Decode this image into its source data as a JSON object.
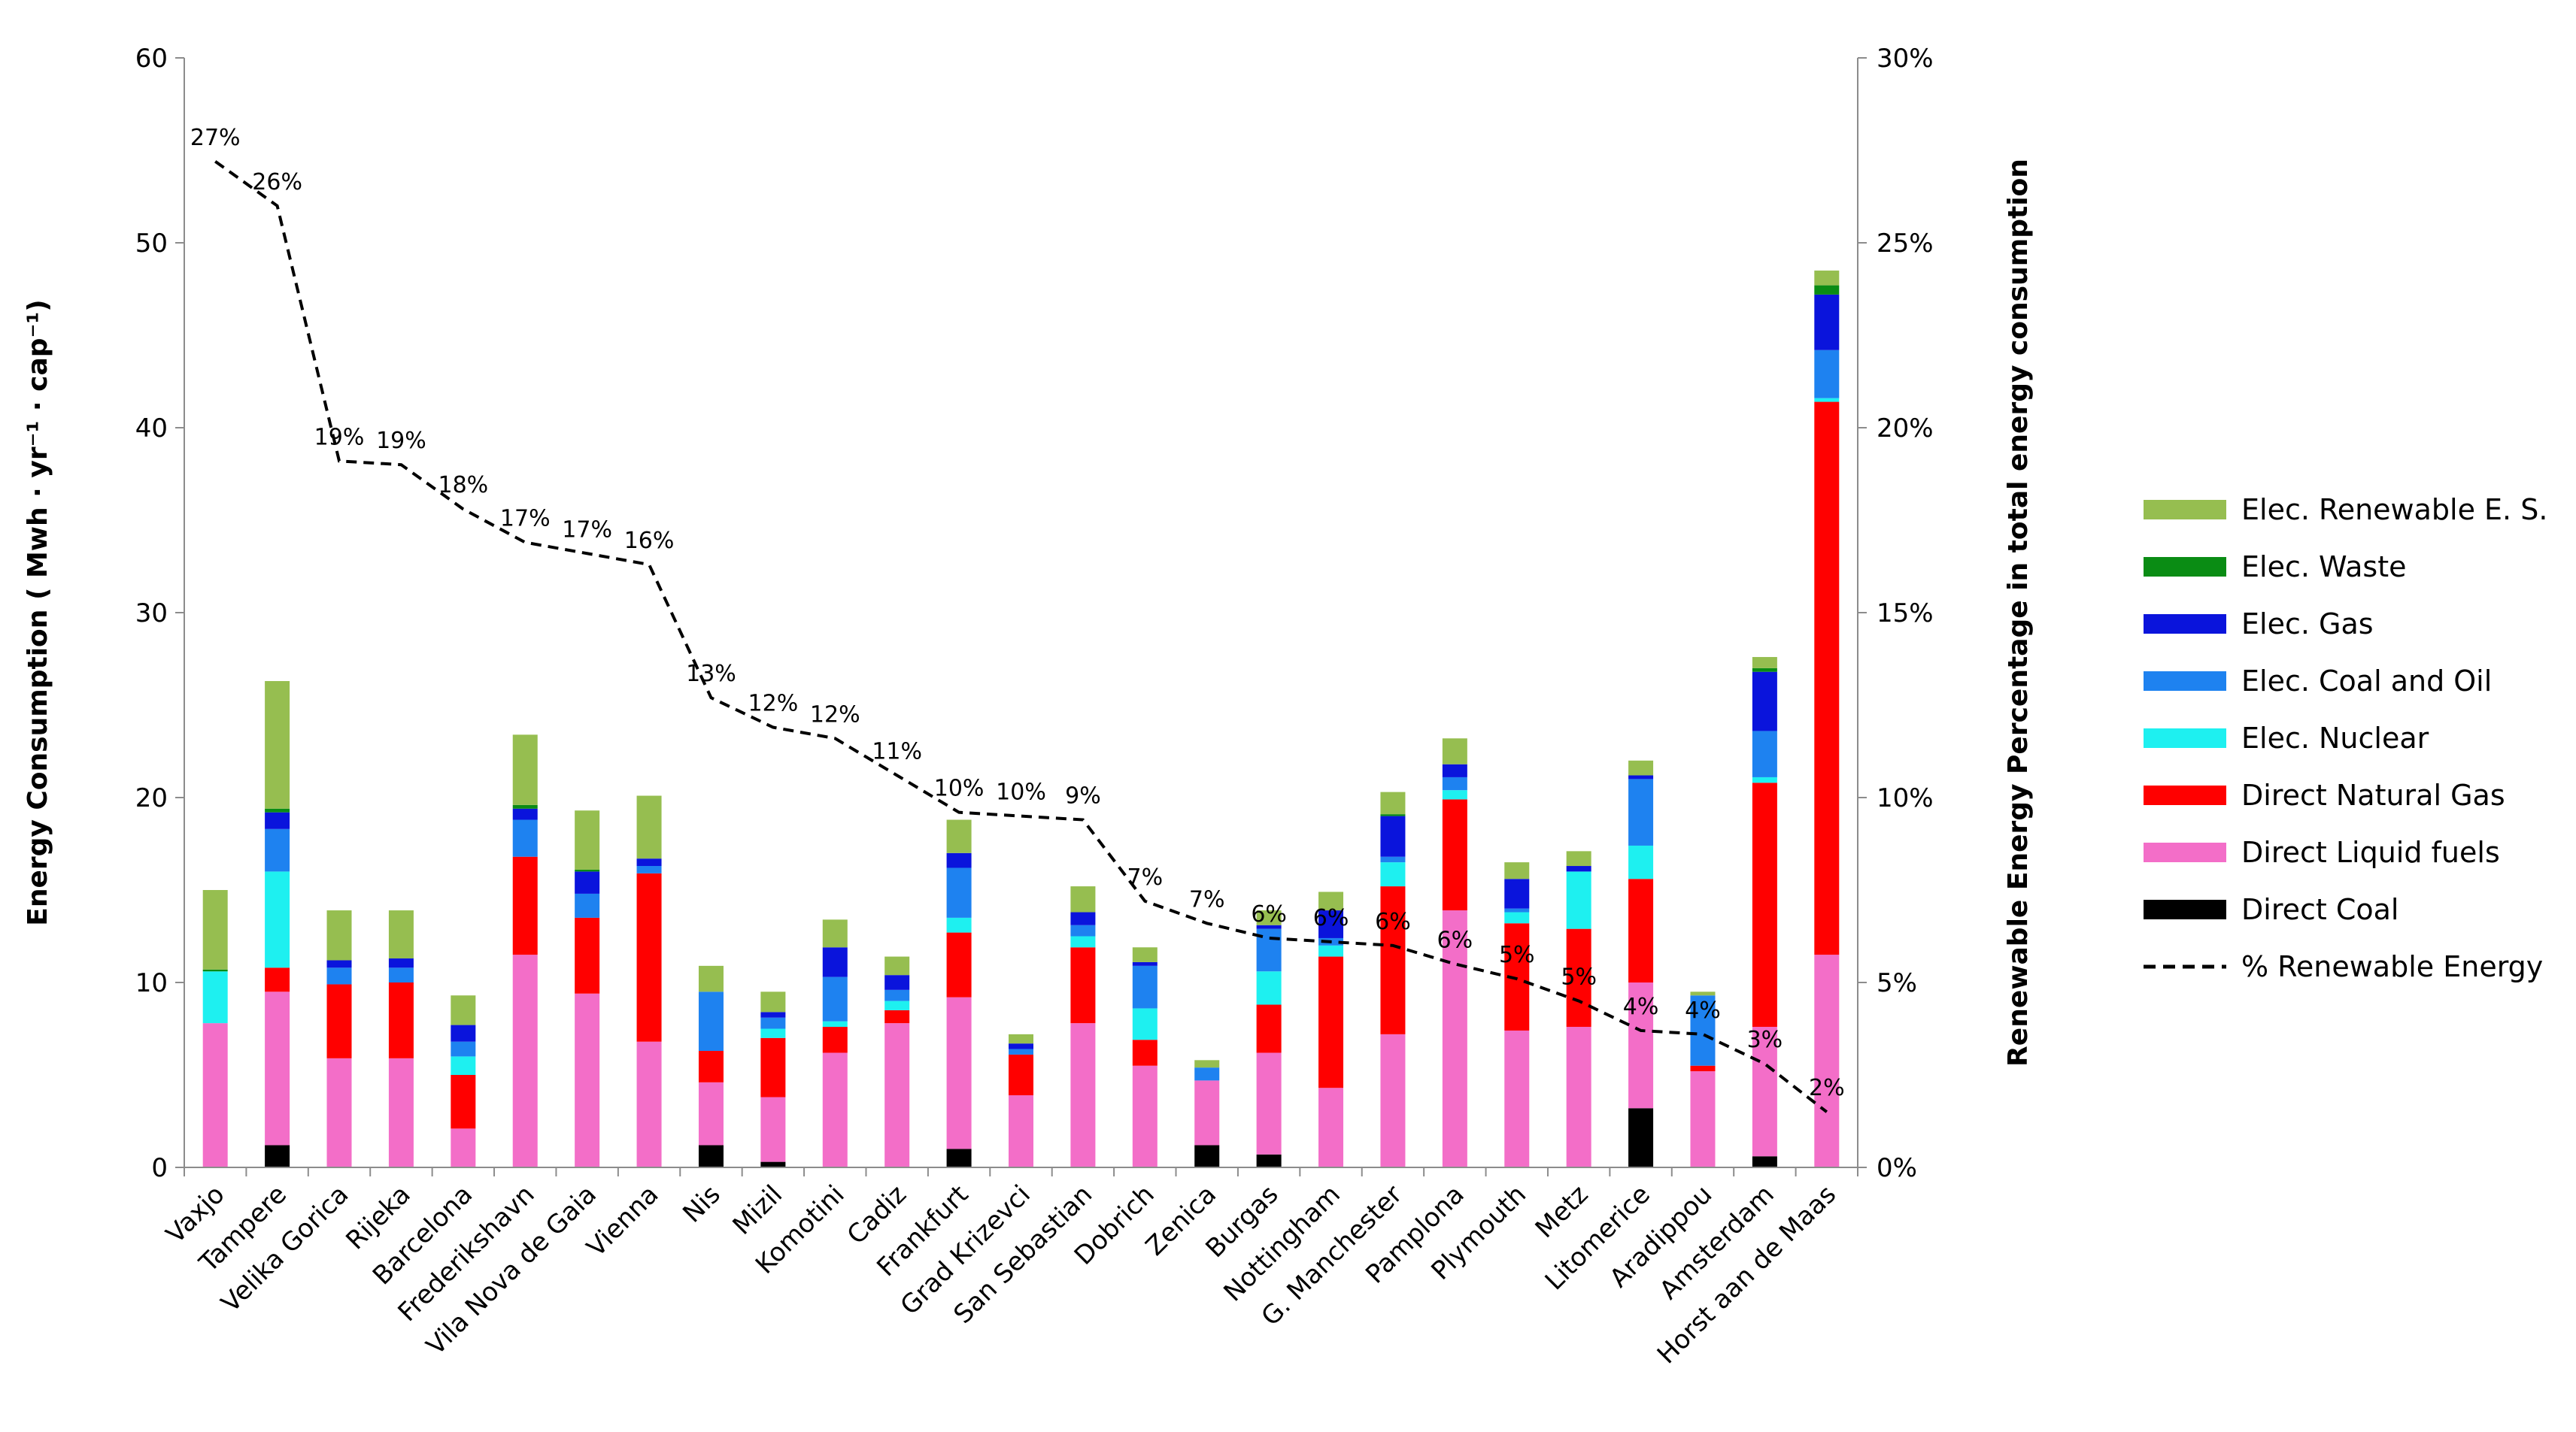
{
  "chart_data": {
    "type": "bar",
    "stacked": true,
    "categories": [
      "Vaxjo",
      "Tampere",
      "Velika Gorica",
      "Rijeka",
      "Barcelona",
      "Frederikshavn",
      "Vila Nova de Gaia",
      "Vienna",
      "Nis",
      "Mizil",
      "Komotini",
      "Cadiz",
      "Frankfurt",
      "Grad Krizevci",
      "San Sebastian",
      "Dobrich",
      "Zenica",
      "Burgas",
      "Nottingham",
      "G. Manchester",
      "Pamplona",
      "Plymouth",
      "Metz",
      "Litomerice",
      "Aradippou",
      "Amsterdam",
      "Horst aan de Maas"
    ],
    "ylabel": "Energy Consumption ( Mwh · yr⁻¹ · cap⁻¹)",
    "ylim": [
      0,
      60
    ],
    "yticks": [
      "0",
      "10",
      "20",
      "30",
      "40",
      "50",
      "60"
    ],
    "y2label": "Renewable Energy Percentage in total energy consumption",
    "y2lim": [
      0,
      30
    ],
    "y2ticks": [
      "0%",
      "5%",
      "10%",
      "15%",
      "20%",
      "25%",
      "30%"
    ],
    "series": [
      {
        "name": "Direct Coal",
        "color": "#000000",
        "values": [
          0,
          1.2,
          0,
          0,
          0,
          0,
          0,
          0,
          1.2,
          0.3,
          0,
          0,
          1.0,
          0,
          0,
          0,
          1.2,
          0.7,
          0,
          0,
          0,
          0,
          0,
          3.2,
          0,
          0.6,
          0
        ]
      },
      {
        "name": "Direct Liquid fuels",
        "color": "#f36ec8",
        "values": [
          7.8,
          8.3,
          5.9,
          5.9,
          2.1,
          11.5,
          9.4,
          6.8,
          3.4,
          3.5,
          6.2,
          7.8,
          8.2,
          3.9,
          7.8,
          5.5,
          3.5,
          5.5,
          4.3,
          7.2,
          13.9,
          7.4,
          7.6,
          6.8,
          5.2,
          7.0,
          11.5
        ]
      },
      {
        "name": "Direct Natural Gas",
        "color": "#ff0000",
        "values": [
          0,
          1.3,
          4.0,
          4.1,
          2.9,
          5.3,
          4.1,
          9.1,
          1.7,
          3.2,
          1.4,
          0.7,
          3.5,
          2.2,
          4.1,
          1.4,
          0,
          2.6,
          7.1,
          8.0,
          6.0,
          5.8,
          5.3,
          5.6,
          0.3,
          13.2,
          29.9
        ]
      },
      {
        "name": "Elec. Nuclear",
        "color": "#1ef0f0",
        "values": [
          2.8,
          5.2,
          0,
          0,
          1.0,
          0,
          0,
          0,
          0,
          0.5,
          0.3,
          0.5,
          0.8,
          0,
          0.6,
          1.7,
          0,
          1.8,
          0.6,
          1.3,
          0.5,
          0.6,
          3.1,
          1.8,
          0,
          0.3,
          0.2
        ]
      },
      {
        "name": "Elec. Coal and Oil",
        "color": "#1e82f0",
        "values": [
          0,
          2.3,
          0.9,
          0.8,
          0.8,
          2.0,
          1.3,
          0.4,
          3.2,
          0.6,
          2.4,
          0.6,
          2.7,
          0.3,
          0.6,
          2.3,
          0.7,
          2.3,
          0.4,
          0.3,
          0.7,
          0.2,
          0,
          3.6,
          3.8,
          2.5,
          2.6
        ]
      },
      {
        "name": "Elec. Gas",
        "color": "#0a14dc",
        "values": [
          0,
          0.9,
          0.4,
          0.5,
          0.9,
          0.6,
          1.2,
          0.4,
          0,
          0.3,
          1.6,
          0.8,
          0.8,
          0.3,
          0.7,
          0.2,
          0,
          0.2,
          1.5,
          2.2,
          0.7,
          1.6,
          0.3,
          0.2,
          0,
          3.2,
          3.0
        ]
      },
      {
        "name": "Elec. Waste",
        "color": "#0a8c14",
        "values": [
          0.1,
          0.2,
          0,
          0,
          0,
          0.2,
          0.1,
          0,
          0,
          0,
          0,
          0,
          0,
          0,
          0,
          0,
          0,
          0,
          0,
          0.1,
          0,
          0,
          0,
          0,
          0,
          0.2,
          0.5
        ]
      },
      {
        "name": "Elec. Renewable E. S.",
        "color": "#96be50",
        "values": [
          4.3,
          6.9,
          2.7,
          2.6,
          1.6,
          3.8,
          3.2,
          3.4,
          1.4,
          1.1,
          1.5,
          1.0,
          1.8,
          0.5,
          1.4,
          0.8,
          0.4,
          0.8,
          1.0,
          1.2,
          1.4,
          0.9,
          0.8,
          0.8,
          0.2,
          0.6,
          0.8
        ]
      }
    ],
    "line": {
      "name": "% Renewable Energy",
      "axis": "right",
      "style": "dashed",
      "values": [
        27.2,
        26.0,
        19.1,
        19.0,
        17.8,
        16.9,
        16.6,
        16.3,
        12.7,
        11.9,
        11.6,
        10.6,
        9.6,
        9.5,
        9.4,
        7.2,
        6.6,
        6.2,
        6.1,
        6.0,
        5.5,
        5.1,
        4.5,
        3.7,
        3.6,
        2.8,
        1.5
      ],
      "labels": [
        "27%",
        "26%",
        "19%",
        "19%",
        "18%",
        "17%",
        "17%",
        "16%",
        "13%",
        "12%",
        "12%",
        "11%",
        "10%",
        "10%",
        "9%",
        "7%",
        "7%",
        "6%",
        "6%",
        "6%",
        "6%",
        "5%",
        "5%",
        "4%",
        "4%",
        "3%",
        "2%"
      ]
    },
    "legend_order": [
      "Elec. Renewable E. S.",
      "Elec. Waste",
      "Elec. Gas",
      "Elec. Coal and Oil",
      "Elec. Nuclear",
      "Direct Natural Gas",
      "Direct Liquid fuels",
      "Direct Coal",
      "% Renewable Energy"
    ],
    "legend_position": "right",
    "grid": false
  }
}
